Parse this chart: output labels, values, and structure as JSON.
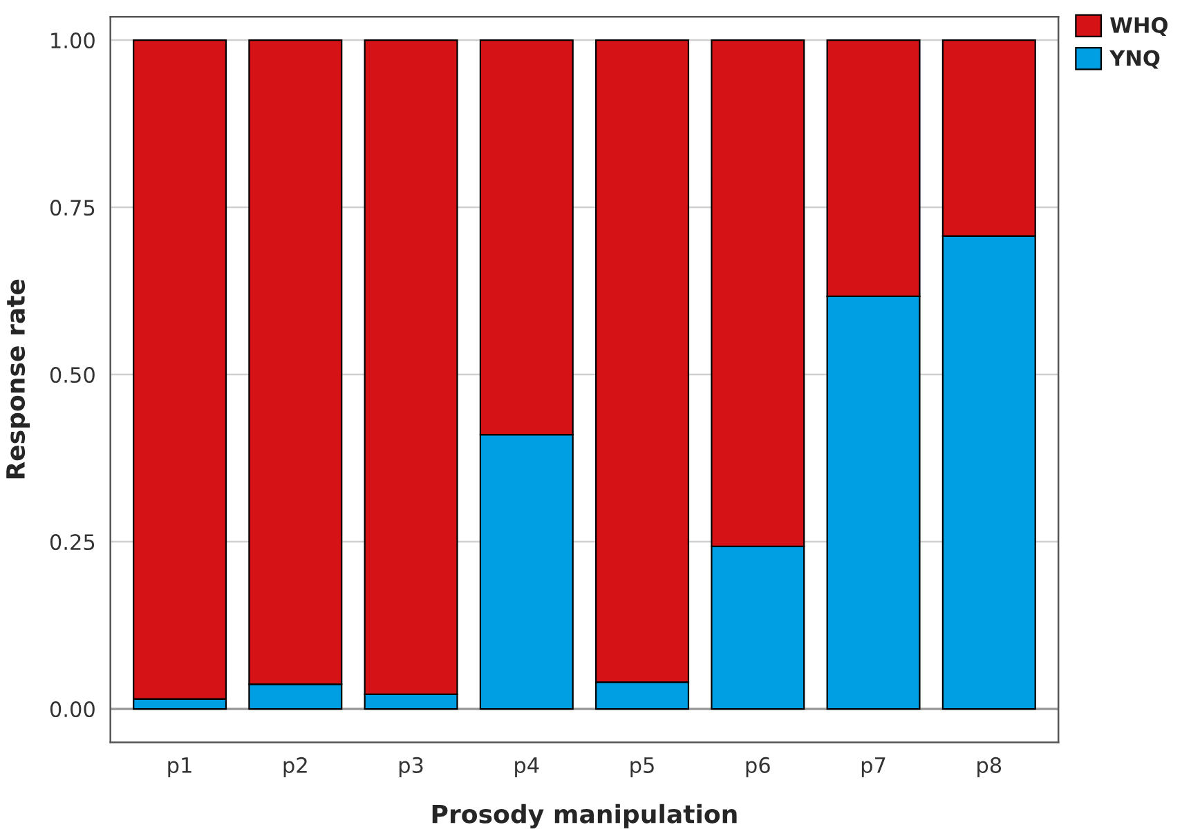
{
  "chart_data": {
    "type": "bar",
    "stacked": true,
    "xlabel": "Prosody manipulation",
    "ylabel": "Response rate",
    "categories": [
      "p1",
      "p2",
      "p3",
      "p4",
      "p5",
      "p6",
      "p7",
      "p8"
    ],
    "series": [
      {
        "name": "YNQ",
        "color": "#009fe3",
        "values": [
          0.015,
          0.037,
          0.022,
          0.41,
          0.04,
          0.243,
          0.617,
          0.707
        ]
      },
      {
        "name": "WHQ",
        "color": "#d51317",
        "values": [
          0.985,
          0.963,
          0.978,
          0.59,
          0.96,
          0.757,
          0.383,
          0.293
        ]
      }
    ],
    "ylim": [
      -0.05,
      1.035
    ],
    "yticks": [
      {
        "value": 0,
        "label": "0.00"
      },
      {
        "value": 0.25,
        "label": "0.25"
      },
      {
        "value": 0.5,
        "label": "0.50"
      },
      {
        "value": 0.75,
        "label": "0.75"
      },
      {
        "value": 1,
        "label": "1.00"
      }
    ],
    "grid": "y",
    "legend": "top right"
  }
}
